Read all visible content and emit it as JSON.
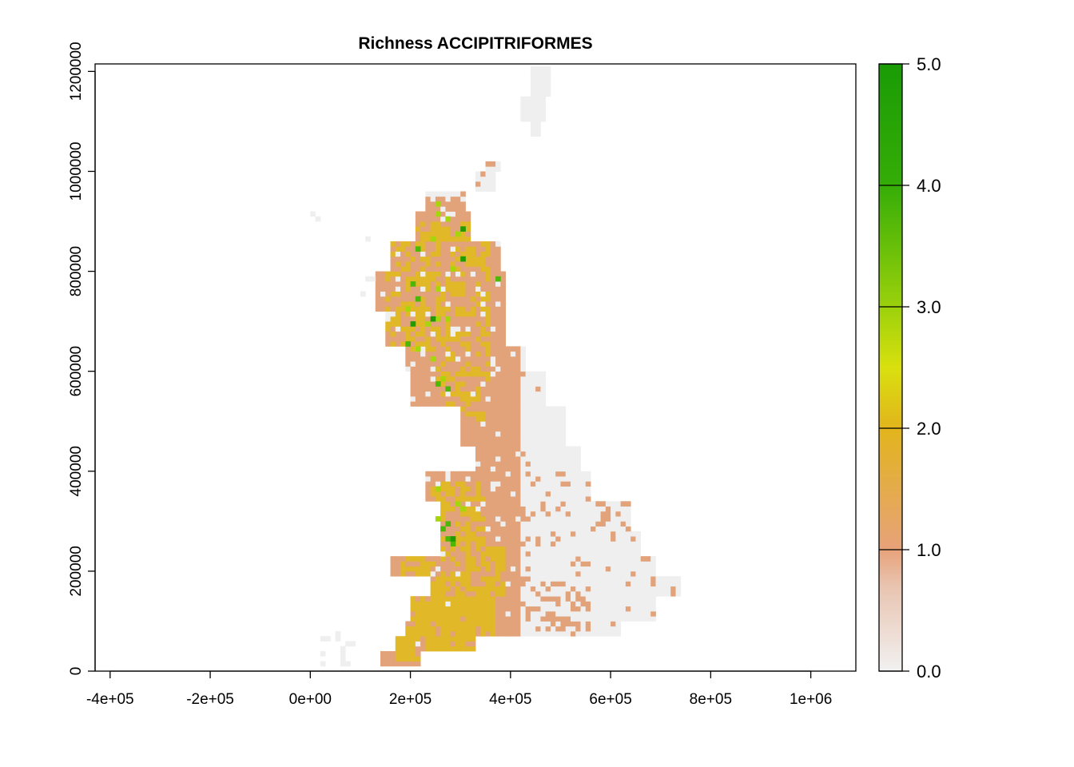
{
  "title": "Richness ACCIPITRIFORMES",
  "x_tick_labels": [
    "-4e+05",
    "-2e+05",
    "0e+00",
    "2e+05",
    "4e+05",
    "6e+05",
    "8e+05",
    "1e+06"
  ],
  "y_tick_labels": [
    "0",
    "200000",
    "400000",
    "600000",
    "800000",
    "1000000",
    "1200000"
  ],
  "legend": {
    "labels": [
      "0.0",
      "1.0",
      "2.0",
      "3.0",
      "4.0",
      "5.0"
    ],
    "gradient_colors": [
      "#f1f1f1",
      "#e7a27a",
      "#e2b51c",
      "#d9e00e",
      "#9bd10b",
      "#35ad07",
      "#1a9b05"
    ]
  },
  "colors": {
    "value_0": "#efefef",
    "value_1": "#e2a27a",
    "value_2": "#e0b828",
    "value_3": "#a6d60a",
    "value_4": "#4db708",
    "value_5": "#229a04"
  },
  "chart_data": {
    "type": "heatmap",
    "title": "Richness ACCIPITRIFORMES",
    "xlabel": "",
    "ylabel": "",
    "xlim": [
      -430000,
      1090000
    ],
    "ylim": [
      0,
      1215000
    ],
    "x_ticks": [
      -400000,
      -200000,
      0,
      200000,
      400000,
      600000,
      800000,
      1000000
    ],
    "y_ticks": [
      0,
      200000,
      400000,
      600000,
      800000,
      1000000,
      1200000
    ],
    "value_range": [
      0,
      5
    ],
    "cell_size": 10000,
    "legend": "right"
  }
}
